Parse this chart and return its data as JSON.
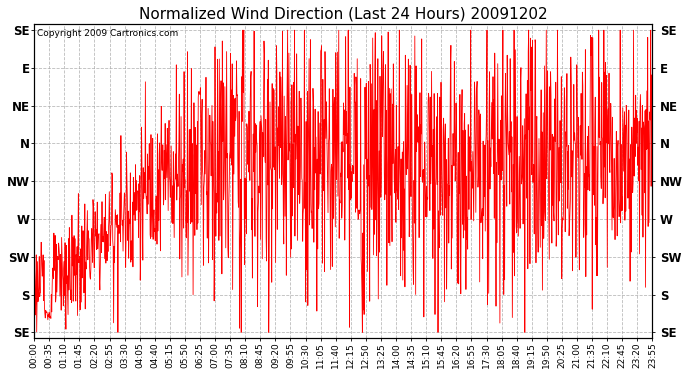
{
  "title": "Normalized Wind Direction (Last 24 Hours) 20091202",
  "copyright_text": "Copyright 2009 Cartronics.com",
  "line_color": "#ff0000",
  "background_color": "#ffffff",
  "plot_bg_color": "#ffffff",
  "grid_color": "#aaaaaa",
  "ytick_labels": [
    "SE",
    "E",
    "NE",
    "N",
    "NW",
    "W",
    "SW",
    "S",
    "SE"
  ],
  "ytick_values": [
    8,
    7,
    6,
    5,
    4,
    3,
    2,
    1,
    0
  ],
  "ylim": [
    -0.15,
    8.15
  ],
  "xtick_labels": [
    "00:00",
    "00:35",
    "01:10",
    "01:45",
    "02:20",
    "02:55",
    "03:30",
    "04:05",
    "04:40",
    "05:15",
    "05:50",
    "06:25",
    "07:00",
    "07:35",
    "08:10",
    "08:45",
    "09:20",
    "09:55",
    "10:30",
    "11:05",
    "11:40",
    "12:15",
    "12:50",
    "13:25",
    "14:00",
    "14:35",
    "15:10",
    "15:45",
    "16:20",
    "16:55",
    "17:30",
    "18:05",
    "18:40",
    "19:15",
    "19:50",
    "20:25",
    "21:00",
    "21:35",
    "22:10",
    "22:45",
    "23:20",
    "23:55"
  ],
  "title_fontsize": 11,
  "copyright_fontsize": 6.5,
  "tick_fontsize": 6.5,
  "ytick_fontsize": 8.5,
  "figsize": [
    6.9,
    3.75
  ],
  "dpi": 100
}
